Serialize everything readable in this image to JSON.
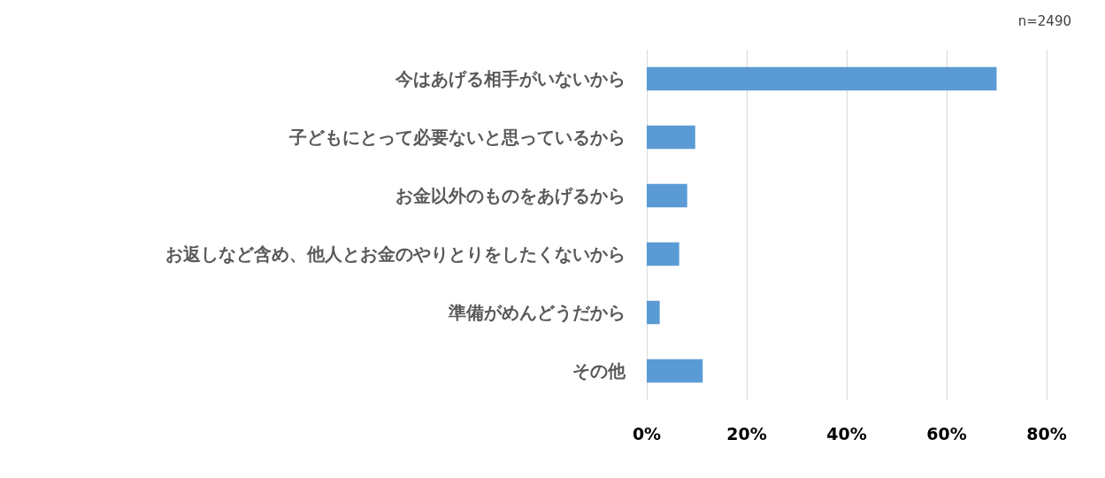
{
  "chart_data": {
    "type": "bar",
    "orientation": "horizontal",
    "categories": [
      "今はあげる相手がいないから",
      "子どもにとって必要ないと思っているから",
      "お金以外のものをあげるから",
      "お返しなど含め、他人とお金のやりとりをしたくないから",
      "準備がめんどうだから",
      "その他"
    ],
    "values": [
      70.0,
      9.7,
      8.1,
      6.5,
      2.6,
      11.2
    ],
    "color": "#5b9bd5",
    "xlim": [
      0,
      80
    ],
    "xticks": [
      {
        "value": 0,
        "label": "0%"
      },
      {
        "value": 20,
        "label": "20%"
      },
      {
        "value": 40,
        "label": "40%"
      },
      {
        "value": 60,
        "label": "60%"
      },
      {
        "value": 80,
        "label": "80%"
      }
    ],
    "grid": "x",
    "annotations": [
      "n=2490"
    ]
  }
}
